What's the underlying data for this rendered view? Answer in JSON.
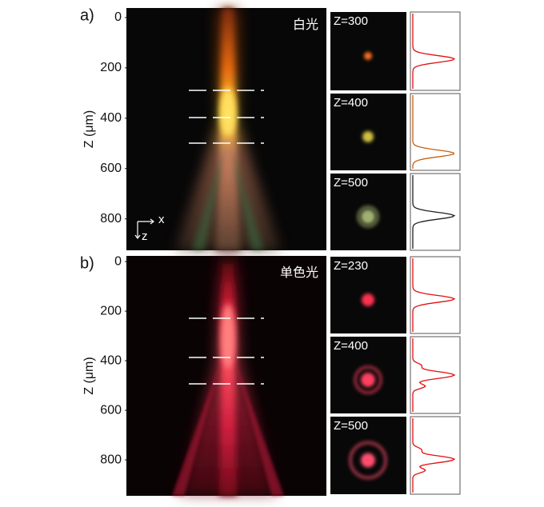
{
  "panels": [
    {
      "label": "a)",
      "title": "白光",
      "y_axis": {
        "label": "Z (μm)",
        "ylim": [
          -38,
          925
        ],
        "ticks": [
          0,
          200,
          400,
          600,
          800
        ]
      },
      "axes_icon": {
        "x": "x",
        "z": "z"
      },
      "insets": [
        {
          "label": "Z=300"
        },
        {
          "label": "Z=400"
        },
        {
          "label": "Z=500"
        }
      ]
    },
    {
      "label": "b)",
      "title": "单色光",
      "y_axis": {
        "label": "Z (μm)",
        "ylim": [
          -23,
          945
        ],
        "ticks": [
          0,
          200,
          400,
          600,
          800
        ]
      },
      "insets": [
        {
          "label": "Z=230"
        },
        {
          "label": "Z=400"
        },
        {
          "label": "Z=500"
        }
      ]
    }
  ]
}
